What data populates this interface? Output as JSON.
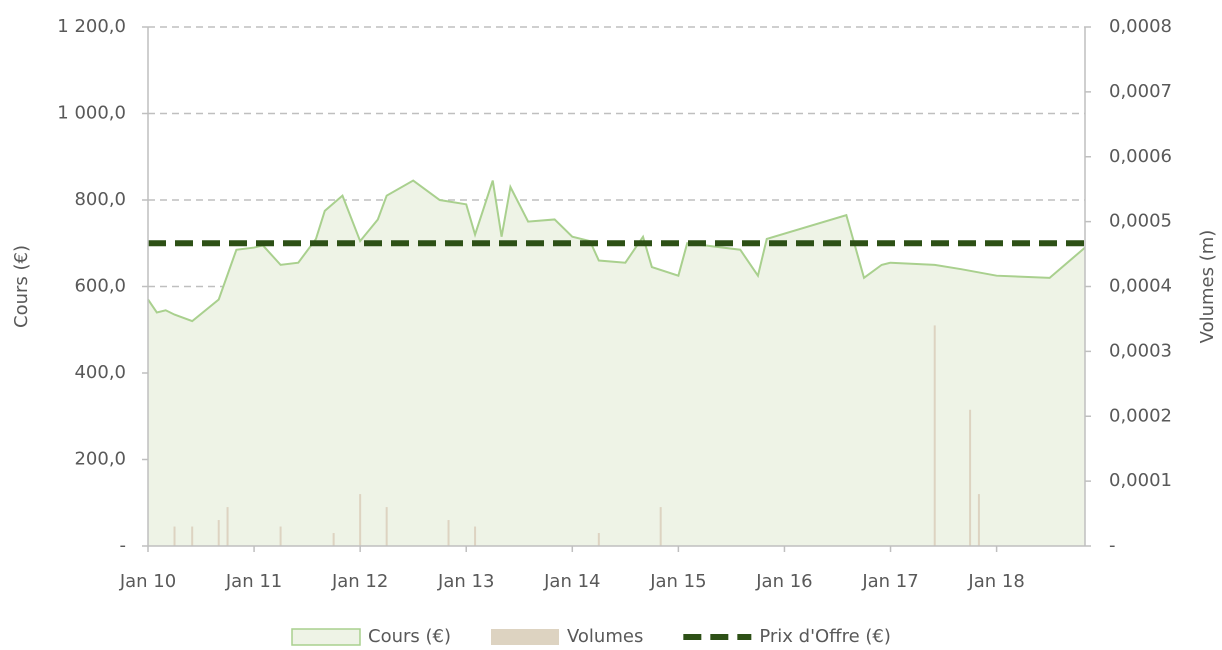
{
  "chart_data": {
    "type": "area-bar-combo",
    "y_label": "Cours (€)",
    "y2_label": "Volumes (m)",
    "xlim": [
      "2010-01",
      "2018-11"
    ],
    "xticks": [
      {
        "value": "2010-01",
        "label": "Jan 10"
      },
      {
        "value": "2011-01",
        "label": "Jan 11"
      },
      {
        "value": "2012-01",
        "label": "Jan 12"
      },
      {
        "value": "2013-01",
        "label": "Jan 13"
      },
      {
        "value": "2014-01",
        "label": "Jan 14"
      },
      {
        "value": "2015-01",
        "label": "Jan 15"
      },
      {
        "value": "2016-01",
        "label": "Jan 16"
      },
      {
        "value": "2017-01",
        "label": "Jan 17"
      },
      {
        "value": "2018-01",
        "label": "Jan 18"
      }
    ],
    "ylim": [
      0,
      1200
    ],
    "yticks": [
      {
        "value": 0,
        "label": "-"
      },
      {
        "value": 200,
        "label": "200,0"
      },
      {
        "value": 400,
        "label": "400,0"
      },
      {
        "value": 600,
        "label": "600,0"
      },
      {
        "value": 800,
        "label": "800,0"
      },
      {
        "value": 1000,
        "label": "1 000,0"
      },
      {
        "value": 1200,
        "label": "1 200,0"
      }
    ],
    "y2lim": [
      0,
      0.0008
    ],
    "y2ticks": [
      {
        "value": 0,
        "label": "-"
      },
      {
        "value": 0.0001,
        "label": "0,0001"
      },
      {
        "value": 0.0002,
        "label": "0,0002"
      },
      {
        "value": 0.0003,
        "label": "0,0003"
      },
      {
        "value": 0.0004,
        "label": "0,0004"
      },
      {
        "value": 0.0005,
        "label": "0,0005"
      },
      {
        "value": 0.0006,
        "label": "0,0006"
      },
      {
        "value": 0.0007,
        "label": "0,0007"
      },
      {
        "value": 0.0008,
        "label": "0,0008"
      }
    ],
    "grid": true,
    "legend": "bottom",
    "series": [
      {
        "name": "Cours (€)",
        "kind": "area",
        "color": "#a9d08e",
        "fill": "#eef3e6",
        "x": [
          "2010-01",
          "2010-02",
          "2010-03",
          "2010-04",
          "2010-06",
          "2010-09",
          "2010-11",
          "2011-01",
          "2011-02",
          "2011-04",
          "2011-06",
          "2011-08",
          "2011-09",
          "2011-11",
          "2012-01",
          "2012-03",
          "2012-04",
          "2012-07",
          "2012-10",
          "2013-01",
          "2013-02",
          "2013-04",
          "2013-05",
          "2013-06",
          "2013-08",
          "2013-11",
          "2014-01",
          "2014-03",
          "2014-04",
          "2014-07",
          "2014-09",
          "2014-10",
          "2015-01",
          "2015-02",
          "2015-08",
          "2015-10",
          "2015-11",
          "2016-08",
          "2016-10",
          "2016-12",
          "2017-01",
          "2017-06",
          "2017-09",
          "2018-01",
          "2018-07",
          "2018-11"
        ],
        "values": [
          570,
          540,
          545,
          535,
          520,
          570,
          685,
          690,
          695,
          650,
          655,
          710,
          775,
          810,
          705,
          755,
          810,
          845,
          800,
          790,
          720,
          845,
          715,
          830,
          750,
          755,
          715,
          705,
          660,
          655,
          715,
          645,
          625,
          700,
          685,
          625,
          710,
          765,
          620,
          650,
          655,
          650,
          640,
          625,
          620,
          690
        ]
      },
      {
        "name": "Volumes",
        "kind": "bar",
        "axis": "y2",
        "color": "#ddd3c1",
        "x": [
          "2010-04",
          "2010-06",
          "2010-09",
          "2010-10",
          "2011-04",
          "2011-10",
          "2012-01",
          "2012-04",
          "2012-11",
          "2013-02",
          "2014-04",
          "2014-11",
          "2017-06",
          "2017-10",
          "2017-11"
        ],
        "values": [
          3e-05,
          3e-05,
          4e-05,
          6e-05,
          3e-05,
          2e-05,
          8e-05,
          6e-05,
          4e-05,
          3e-05,
          2e-05,
          6e-05,
          0.00034,
          0.00021,
          8e-05
        ]
      },
      {
        "name": "Prix d'Offre (€)",
        "kind": "hline",
        "color": "#2d5016",
        "value": 700
      }
    ]
  }
}
